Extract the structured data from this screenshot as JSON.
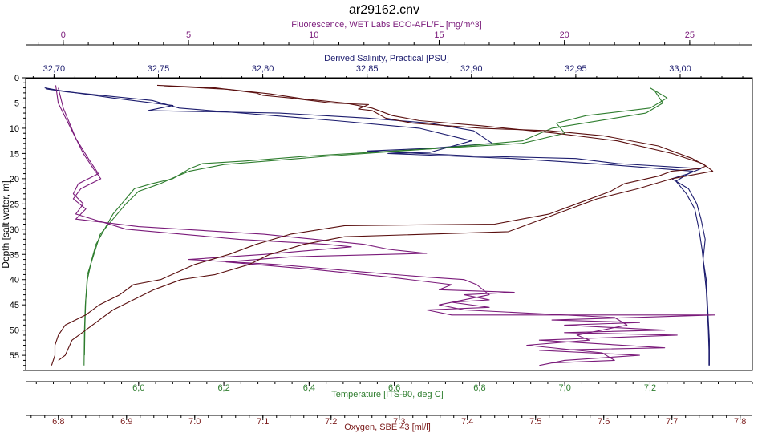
{
  "chart_data": {
    "type": "line",
    "title": "ar29162.cnv",
    "y_axis": {
      "label": "Depth [salt water, m]",
      "range": [
        0,
        58
      ],
      "ticks": [
        0,
        5,
        10,
        15,
        20,
        25,
        30,
        35,
        40,
        45,
        50,
        55
      ],
      "inverted": true
    },
    "x_axes": [
      {
        "id": "fluorescence",
        "label": "Fluorescence, WET Labs ECO-AFL/FL [mg/m^3]",
        "position": "top",
        "color": "#7a1a7a",
        "range": [
          -1.5,
          27.5
        ],
        "ticks": [
          0,
          5,
          10,
          15,
          20,
          25
        ]
      },
      {
        "id": "salinity",
        "label": "Derived Salinity, Practical [PSU]",
        "position": "top",
        "color": "#1c1c6e",
        "range": [
          32.6864,
          33.0346
        ],
        "ticks": [
          "32,70",
          "32,75",
          "32,80",
          "32,85",
          "32,90",
          "32,95",
          "33,00"
        ],
        "tick_values": [
          32.7,
          32.75,
          32.8,
          32.85,
          32.9,
          32.95,
          33.0
        ]
      },
      {
        "id": "temperature",
        "label": "Temperature [ITS-90, deg C]",
        "position": "bottom",
        "color": "#2e7d2e",
        "range": [
          5.735,
          7.44
        ],
        "ticks": [
          "6,0",
          "6,2",
          "6,4",
          "6,6",
          "6,8",
          "7,0",
          "7,2"
        ],
        "tick_values": [
          6.0,
          6.2,
          6.4,
          6.6,
          6.8,
          7.0,
          7.2
        ]
      },
      {
        "id": "oxygen",
        "label": "Oxygen, SBE 43 [ml/l]",
        "position": "bottom",
        "color": "#7a1a1a",
        "range": [
          6.752,
          7.818
        ],
        "ticks": [
          "6.8",
          "6.9",
          "7.0",
          "7.1",
          "7.2",
          "7.3",
          "7.4",
          "7.5",
          "7.6",
          "7.7",
          "7.8"
        ],
        "tick_values": [
          6.8,
          6.9,
          7.0,
          7.1,
          7.2,
          7.3,
          7.4,
          7.5,
          7.6,
          7.7,
          7.8
        ]
      }
    ],
    "series": [
      {
        "axis": "salinity",
        "color": "#1c1c6e",
        "points": [
          [
            32.6955,
            2
          ],
          [
            32.702,
            2.5
          ],
          [
            32.728,
            4
          ],
          [
            32.757,
            5.5
          ],
          [
            32.745,
            6.5
          ],
          [
            32.808,
            7
          ],
          [
            32.85,
            8
          ],
          [
            32.88,
            9
          ],
          [
            32.901,
            10.5
          ],
          [
            32.91,
            13
          ],
          [
            32.88,
            14
          ],
          [
            32.85,
            14.5
          ],
          [
            32.901,
            15.5
          ],
          [
            32.95,
            16
          ],
          [
            32.97,
            17
          ],
          [
            33.01,
            18
          ],
          [
            33.004,
            19
          ],
          [
            32.996,
            20
          ],
          [
            33.004,
            22
          ],
          [
            33.008,
            25
          ],
          [
            33.01,
            28
          ],
          [
            33.012,
            32
          ],
          [
            33.011,
            36
          ],
          [
            33.0125,
            40
          ],
          [
            33.013,
            44
          ],
          [
            33.0135,
            48
          ],
          [
            33.014,
            52
          ],
          [
            33.014,
            57
          ]
        ]
      },
      {
        "axis": "salinity",
        "color": "#1c1c6e",
        "points": [
          [
            32.696,
            2.2
          ],
          [
            32.706,
            2.8
          ],
          [
            32.747,
            4.5
          ],
          [
            32.76,
            6
          ],
          [
            32.805,
            7.5
          ],
          [
            32.835,
            8.5
          ],
          [
            32.875,
            10
          ],
          [
            32.9,
            12.5
          ],
          [
            32.88,
            14.8
          ],
          [
            32.86,
            15
          ],
          [
            32.92,
            16
          ],
          [
            32.965,
            17.2
          ],
          [
            33.006,
            18.5
          ],
          [
            32.998,
            20.5
          ],
          [
            33.003,
            23
          ],
          [
            33.007,
            26
          ],
          [
            33.009,
            30
          ],
          [
            33.0105,
            34
          ],
          [
            33.0115,
            38
          ],
          [
            33.0125,
            42
          ],
          [
            33.013,
            46
          ],
          [
            33.0135,
            50
          ],
          [
            33.0138,
            54
          ],
          [
            33.0138,
            57
          ]
        ]
      },
      {
        "axis": "temperature",
        "color": "#2e7d2e",
        "points": [
          [
            7.2,
            2
          ],
          [
            7.24,
            4
          ],
          [
            7.2,
            6
          ],
          [
            7.05,
            7.5
          ],
          [
            6.98,
            9
          ],
          [
            7.0,
            11
          ],
          [
            6.95,
            12
          ],
          [
            6.9,
            13
          ],
          [
            6.5,
            15
          ],
          [
            6.4,
            15.5
          ],
          [
            6.25,
            16.5
          ],
          [
            6.15,
            17
          ],
          [
            6.12,
            18
          ],
          [
            6.1,
            19
          ],
          [
            6.08,
            20
          ],
          [
            6.03,
            21
          ],
          [
            5.99,
            22
          ],
          [
            5.97,
            24
          ],
          [
            5.94,
            27
          ],
          [
            5.92,
            30
          ],
          [
            5.9,
            33
          ],
          [
            5.89,
            36
          ],
          [
            5.88,
            40
          ],
          [
            5.875,
            45
          ],
          [
            5.873,
            50
          ],
          [
            5.872,
            57
          ]
        ]
      },
      {
        "axis": "temperature",
        "color": "#2e7d2e",
        "points": [
          [
            7.21,
            2.5
          ],
          [
            7.23,
            5
          ],
          [
            7.19,
            7
          ],
          [
            6.97,
            10
          ],
          [
            6.9,
            12.5
          ],
          [
            6.7,
            14
          ],
          [
            6.45,
            15.5
          ],
          [
            6.2,
            17.2
          ],
          [
            6.12,
            18.5
          ],
          [
            6.09,
            19.5
          ],
          [
            6.05,
            21
          ],
          [
            6.0,
            22.5
          ],
          [
            5.97,
            25
          ],
          [
            5.94,
            28
          ],
          [
            5.91,
            31
          ],
          [
            5.895,
            35
          ],
          [
            5.88,
            39
          ],
          [
            5.876,
            44
          ],
          [
            5.874,
            49
          ],
          [
            5.873,
            55
          ]
        ]
      },
      {
        "axis": "fluorescence",
        "color": "#7a1a7a",
        "points": [
          [
            -0.3,
            1.5
          ],
          [
            -0.2,
            5
          ],
          [
            0.3,
            10
          ],
          [
            0.8,
            15
          ],
          [
            1.2,
            18
          ],
          [
            1.5,
            20
          ],
          [
            0.7,
            22
          ],
          [
            0.4,
            24
          ],
          [
            0.9,
            26
          ],
          [
            0.5,
            28
          ],
          [
            3.0,
            29.5
          ],
          [
            8.0,
            31
          ],
          [
            12.0,
            33
          ],
          [
            13.0,
            34
          ],
          [
            14.5,
            34.8
          ],
          [
            9.0,
            35.5
          ],
          [
            6.5,
            36.5
          ],
          [
            10.0,
            38
          ],
          [
            13.0,
            39.5
          ],
          [
            15.5,
            41
          ],
          [
            15.0,
            42
          ],
          [
            18.0,
            42.5
          ],
          [
            16.0,
            43
          ],
          [
            17.0,
            44
          ],
          [
            15.5,
            44.5
          ],
          [
            17.0,
            45.5
          ],
          [
            14.5,
            46
          ],
          [
            15.5,
            47
          ],
          [
            26.0,
            47
          ],
          [
            19.5,
            48
          ],
          [
            23.0,
            48.5
          ],
          [
            20.0,
            49
          ],
          [
            24.0,
            50
          ],
          [
            20.0,
            50.5
          ],
          [
            24.5,
            51
          ],
          [
            19.0,
            52
          ],
          [
            24.0,
            53.5
          ],
          [
            19.0,
            54
          ],
          [
            23.0,
            55
          ],
          [
            20.0,
            56
          ],
          [
            19.0,
            57
          ]
        ]
      },
      {
        "axis": "fluorescence",
        "color": "#7a1a7a",
        "points": [
          [
            -0.2,
            2
          ],
          [
            0.0,
            6
          ],
          [
            0.5,
            12
          ],
          [
            1.0,
            16
          ],
          [
            1.4,
            19
          ],
          [
            0.6,
            21
          ],
          [
            0.4,
            23
          ],
          [
            0.8,
            25
          ],
          [
            0.5,
            27
          ],
          [
            2.5,
            30
          ],
          [
            7.0,
            32
          ],
          [
            10.5,
            33
          ],
          [
            11.5,
            33.5
          ],
          [
            8.0,
            35
          ],
          [
            5.0,
            36
          ],
          [
            8.5,
            37
          ],
          [
            12.0,
            38.5
          ],
          [
            14.5,
            39.5
          ],
          [
            16.0,
            40
          ],
          [
            16.5,
            41
          ],
          [
            17.0,
            43
          ],
          [
            15.0,
            45
          ],
          [
            16.0,
            46
          ],
          [
            22.0,
            47.5
          ],
          [
            22.5,
            49
          ],
          [
            20.5,
            51
          ],
          [
            21.0,
            52
          ],
          [
            18.5,
            53
          ],
          [
            21.5,
            54.5
          ],
          [
            22.0,
            56
          ],
          [
            19.5,
            56.5
          ]
        ]
      },
      {
        "axis": "oxygen",
        "color": "#5a0f0f",
        "points": [
          [
            6.945,
            1.5
          ],
          [
            7.03,
            2
          ],
          [
            7.09,
            3
          ],
          [
            7.1,
            3.5
          ],
          [
            7.14,
            4
          ],
          [
            7.17,
            4.5
          ],
          [
            7.2,
            5
          ],
          [
            7.255,
            5.3
          ],
          [
            7.24,
            6.2
          ],
          [
            7.26,
            6.5
          ],
          [
            7.28,
            8
          ],
          [
            7.32,
            9
          ],
          [
            7.42,
            10
          ],
          [
            7.52,
            10.5
          ],
          [
            7.6,
            11.5
          ],
          [
            7.68,
            13.5
          ],
          [
            7.73,
            16
          ],
          [
            7.75,
            17.5
          ],
          [
            7.74,
            18
          ],
          [
            7.7,
            18.5
          ],
          [
            7.68,
            19.5
          ],
          [
            7.63,
            21
          ],
          [
            7.61,
            22.5
          ],
          [
            7.56,
            25
          ],
          [
            7.52,
            27
          ],
          [
            7.44,
            29
          ],
          [
            7.22,
            29.3
          ],
          [
            7.14,
            31
          ],
          [
            7.09,
            33
          ],
          [
            7.05,
            35
          ],
          [
            7.0,
            37
          ],
          [
            6.95,
            40
          ],
          [
            6.91,
            41
          ],
          [
            6.89,
            43
          ],
          [
            6.86,
            45
          ],
          [
            6.84,
            47
          ],
          [
            6.81,
            49
          ],
          [
            6.8,
            51
          ],
          [
            6.795,
            53
          ],
          [
            6.795,
            55
          ],
          [
            6.79,
            57
          ]
        ]
      },
      {
        "axis": "oxygen",
        "color": "#5a0f0f",
        "points": [
          [
            6.955,
            1.6
          ],
          [
            7.05,
            2.3
          ],
          [
            7.11,
            3.2
          ],
          [
            7.16,
            4.2
          ],
          [
            7.22,
            5
          ],
          [
            7.26,
            6
          ],
          [
            7.29,
            7.5
          ],
          [
            7.33,
            8.5
          ],
          [
            7.42,
            9.5
          ],
          [
            7.53,
            11
          ],
          [
            7.62,
            12.5
          ],
          [
            7.7,
            15
          ],
          [
            7.745,
            17
          ],
          [
            7.76,
            18.5
          ],
          [
            7.7,
            20
          ],
          [
            7.65,
            22
          ],
          [
            7.59,
            24
          ],
          [
            7.55,
            26
          ],
          [
            7.5,
            28.5
          ],
          [
            7.46,
            30.5
          ],
          [
            7.22,
            31.5
          ],
          [
            7.16,
            33
          ],
          [
            7.11,
            35
          ],
          [
            7.08,
            37
          ],
          [
            7.03,
            39
          ],
          [
            6.98,
            40
          ],
          [
            6.94,
            42
          ],
          [
            6.91,
            44
          ],
          [
            6.88,
            46
          ],
          [
            6.86,
            48
          ],
          [
            6.84,
            50
          ],
          [
            6.82,
            52
          ],
          [
            6.81,
            55
          ],
          [
            6.8,
            56
          ]
        ]
      }
    ],
    "grid": false,
    "legend": "none"
  }
}
